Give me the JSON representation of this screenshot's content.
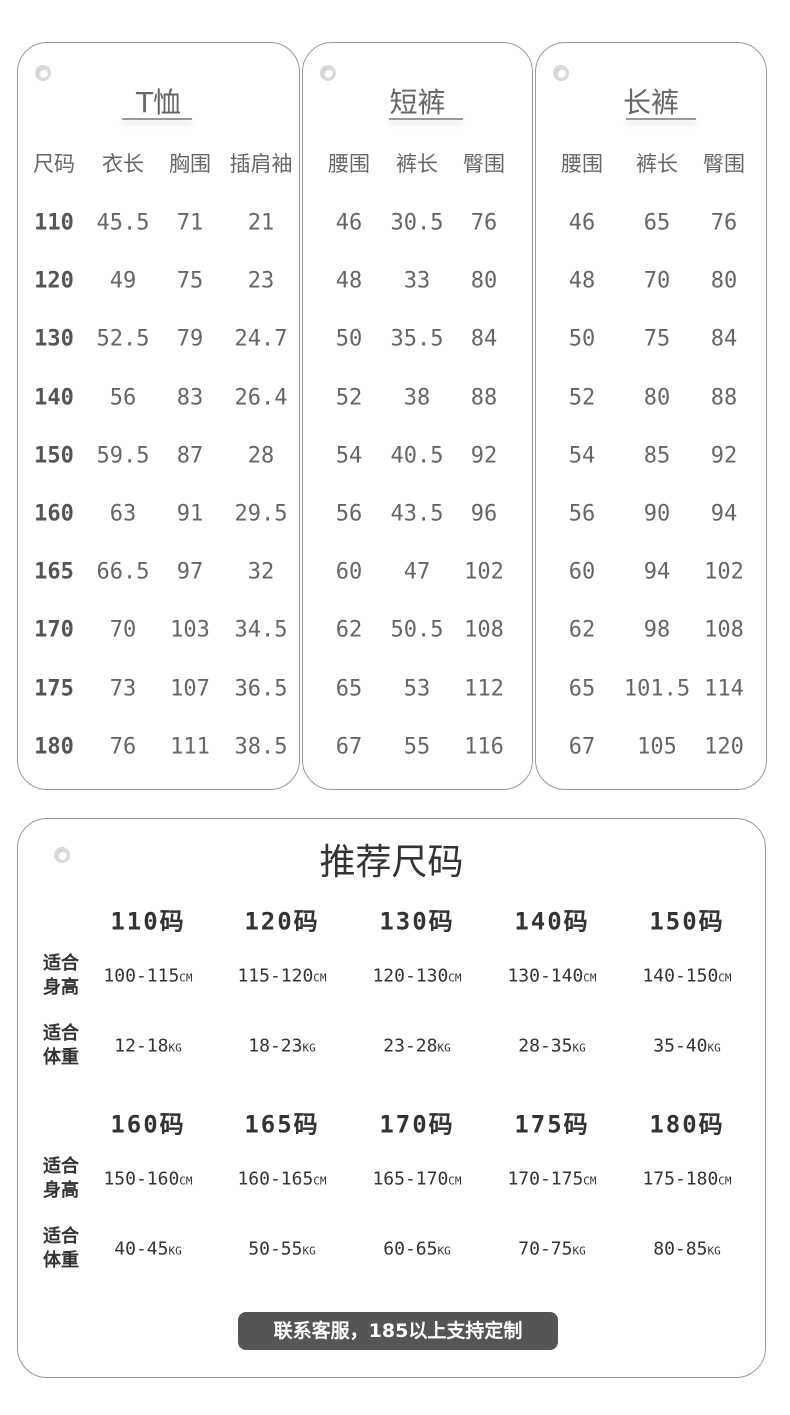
{
  "tables": [
    {
      "title": "T恤",
      "headers": [
        "尺码",
        "衣长",
        "胸围",
        "插肩袖"
      ],
      "rows": [
        [
          "110",
          "45.5",
          "71",
          "21"
        ],
        [
          "120",
          "49",
          "75",
          "23"
        ],
        [
          "130",
          "52.5",
          "79",
          "24.7"
        ],
        [
          "140",
          "56",
          "83",
          "26.4"
        ],
        [
          "150",
          "59.5",
          "87",
          "28"
        ],
        [
          "160",
          "63",
          "91",
          "29.5"
        ],
        [
          "165",
          "66.5",
          "97",
          "32"
        ],
        [
          "170",
          "70",
          "103",
          "34.5"
        ],
        [
          "175",
          "73",
          "107",
          "36.5"
        ],
        [
          "180",
          "76",
          "111",
          "38.5"
        ]
      ]
    },
    {
      "title": "短裤",
      "headers": [
        "腰围",
        "裤长",
        "臀围"
      ],
      "rows": [
        [
          "46",
          "30.5",
          "76"
        ],
        [
          "48",
          "33",
          "80"
        ],
        [
          "50",
          "35.5",
          "84"
        ],
        [
          "52",
          "38",
          "88"
        ],
        [
          "54",
          "40.5",
          "92"
        ],
        [
          "56",
          "43.5",
          "96"
        ],
        [
          "60",
          "47",
          "102"
        ],
        [
          "62",
          "50.5",
          "108"
        ],
        [
          "65",
          "53",
          "112"
        ],
        [
          "67",
          "55",
          "116"
        ]
      ]
    },
    {
      "title": "长裤",
      "headers": [
        "腰围",
        "裤长",
        "臀围"
      ],
      "rows": [
        [
          "46",
          "65",
          "76"
        ],
        [
          "48",
          "70",
          "80"
        ],
        [
          "50",
          "75",
          "84"
        ],
        [
          "52",
          "80",
          "88"
        ],
        [
          "54",
          "85",
          "92"
        ],
        [
          "56",
          "90",
          "94"
        ],
        [
          "60",
          "94",
          "102"
        ],
        [
          "62",
          "98",
          "108"
        ],
        [
          "65",
          "101.5",
          "114"
        ],
        [
          "67",
          "105",
          "120"
        ]
      ]
    }
  ],
  "recommend": {
    "title": "推荐尺码",
    "height_label": "适合\n身高",
    "weight_label": "适合\n体重",
    "height_unit": "CM",
    "weight_unit": "KG",
    "groups": [
      {
        "sizes": [
          "110码",
          "120码",
          "130码",
          "140码",
          "150码"
        ],
        "heights": [
          "100-115",
          "115-120",
          "120-130",
          "130-140",
          "140-150"
        ],
        "weights": [
          "12-18",
          "18-23",
          "23-28",
          "28-35",
          "35-40"
        ]
      },
      {
        "sizes": [
          "160码",
          "165码",
          "170码",
          "175码",
          "180码"
        ],
        "heights": [
          "150-160",
          "160-165",
          "165-170",
          "170-175",
          "175-180"
        ],
        "weights": [
          "40-45",
          "50-55",
          "60-65",
          "70-75",
          "80-85"
        ]
      }
    ],
    "note": "联系客服，185以上支持定制"
  }
}
